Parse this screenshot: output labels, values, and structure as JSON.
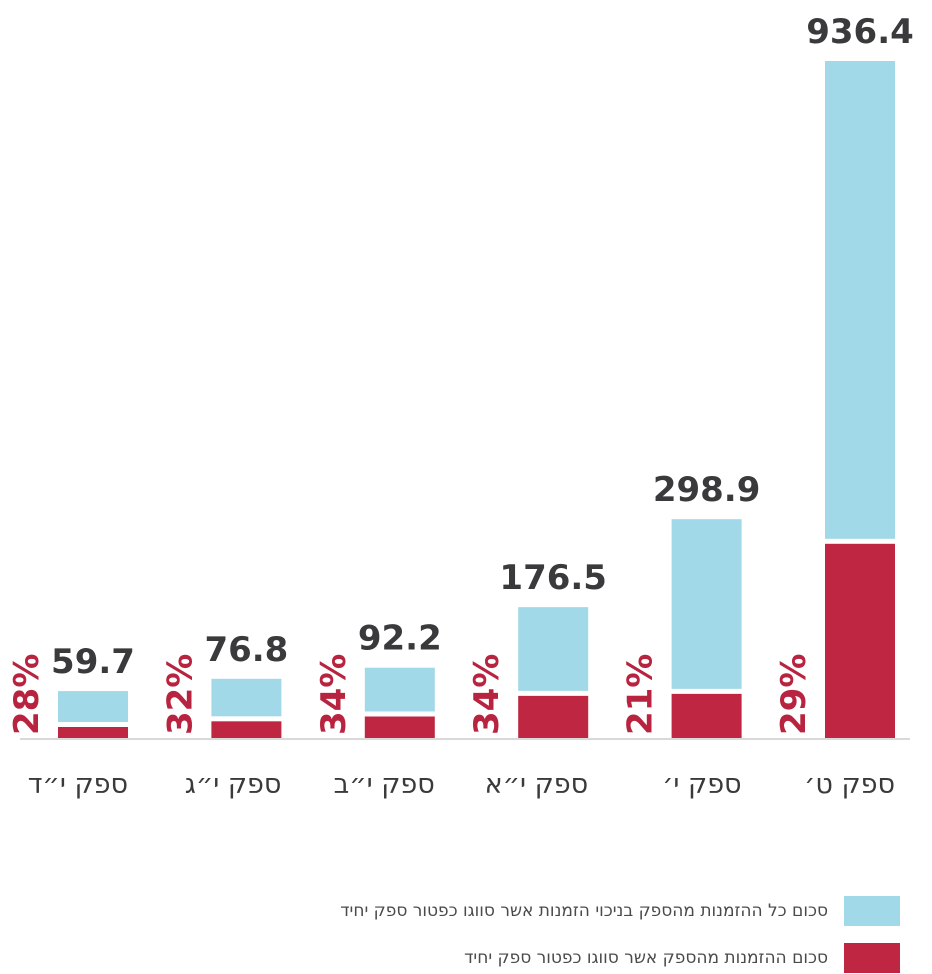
{
  "chart_data": {
    "type": "bar",
    "stacked": true,
    "categories": [
      "ספק ט׳",
      "ספק י׳",
      "ספק י״א",
      "ספק י״ב",
      "ספק י״ג",
      "ספק י״ד"
    ],
    "totals": [
      936.4,
      298.9,
      176.5,
      92.2,
      76.8,
      59.7
    ],
    "total_labels": [
      "936.4",
      "298.9",
      "176.5",
      "92.2",
      "76.8",
      "59.7"
    ],
    "single_source_share_labels": [
      "29%",
      "21%",
      "34%",
      "34%",
      "32%",
      "28%"
    ],
    "series": [
      {
        "name": "סכום ההזמנות מהספק אשר סווגו כפטור ספק יחיד",
        "color": "#be2641",
        "values": [
          271.6,
          62.8,
          60.0,
          31.3,
          24.6,
          16.7
        ]
      },
      {
        "name": "סכום כל ההזמנות מהספק בניכוי הזמנות אשר סווגו כפטור ספק יחיד",
        "color": "#a2d9e8",
        "values": [
          664.8,
          236.1,
          116.5,
          60.9,
          52.2,
          43.0
        ]
      }
    ],
    "category_order": "right-to-left",
    "grid": false,
    "legend_position": "bottom-right"
  },
  "legend": {
    "items": [
      {
        "label": "סכום כל ההזמנות מהספק בניכוי הזמנות אשר סווגו כפטור ספק יחיד",
        "color": "#a2d9e8"
      },
      {
        "label": "סכום ההזמנות מהספק אשר סווגו כפטור ספק יחיד",
        "color": "#be2641"
      }
    ]
  }
}
